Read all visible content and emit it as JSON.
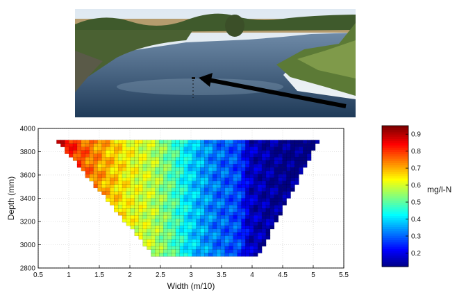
{
  "chart_data": {
    "type": "heatmap",
    "xlabel": "Width (m/10)",
    "ylabel": "Depth (mm)",
    "xlim": [
      0.5,
      5.5
    ],
    "ylim": [
      2800,
      4000
    ],
    "xticks": [
      "0.5",
      "1",
      "1.5",
      "2",
      "2.5",
      "3",
      "3.5",
      "4",
      "4.5",
      "5",
      "5.5"
    ],
    "yticks": [
      "2800",
      "3000",
      "3200",
      "3400",
      "3600",
      "3800",
      "4000"
    ],
    "grid": true,
    "region": {
      "top_depth": 3900,
      "bottom_depth": 2900,
      "left_top_x": 0.8,
      "left_bottom_x": 2.4,
      "right_top_x": 5.1,
      "right_bottom_x": 4.1
    },
    "value_profile": [
      {
        "x": 0.8,
        "value": 0.88
      },
      {
        "x": 1.2,
        "value": 0.78
      },
      {
        "x": 1.6,
        "value": 0.7
      },
      {
        "x": 2.0,
        "value": 0.63
      },
      {
        "x": 2.4,
        "value": 0.58
      },
      {
        "x": 2.7,
        "value": 0.5
      },
      {
        "x": 3.0,
        "value": 0.4
      },
      {
        "x": 3.4,
        "value": 0.32
      },
      {
        "x": 3.8,
        "value": 0.28
      },
      {
        "x": 3.95,
        "value": 0.18
      },
      {
        "x": 4.5,
        "value": 0.13
      },
      {
        "x": 5.1,
        "value": 0.12
      }
    ],
    "colorbar": {
      "label": "mg/l-N",
      "min": 0.12,
      "max": 0.95,
      "ticks": [
        "0.2",
        "0.3",
        "0.4",
        "0.5",
        "0.6",
        "0.7",
        "0.8",
        "0.9"
      ],
      "colormap": "jet"
    }
  },
  "photo": {
    "description_icon": "river-photo",
    "arrow_color": "#000000"
  }
}
